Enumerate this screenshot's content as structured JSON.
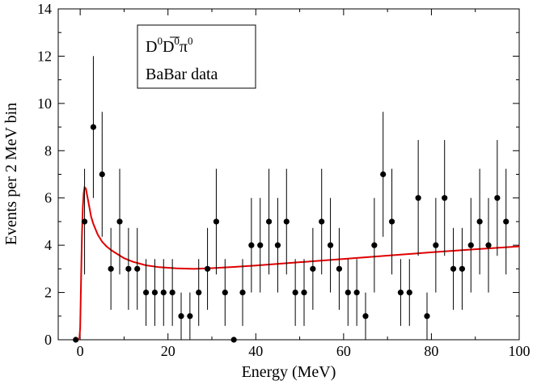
{
  "chart_data": {
    "type": "scatter",
    "title": "",
    "xlabel": "Energy (MeV)",
    "ylabel": "Events per 2 MeV bin",
    "xlim": [
      -5,
      100
    ],
    "ylim": [
      0,
      14
    ],
    "x_ticks": [
      0,
      20,
      40,
      60,
      80,
      100
    ],
    "y_ticks": [
      0,
      2,
      4,
      6,
      8,
      10,
      12,
      14
    ],
    "x_tick_labels": [
      "0",
      "20",
      "40",
      "60",
      "80",
      "100"
    ],
    "y_tick_labels": [
      "0",
      "2",
      "4",
      "6",
      "8",
      "10",
      "12",
      "14"
    ],
    "legend": {
      "base_D1": "D",
      "sup_0a": "0",
      "base_D2": "D",
      "sup_0b": "0",
      "base_pi": "π",
      "sup_0c": "0",
      "line2": "BaBar data",
      "placement": "top-left"
    },
    "data_color": "#000000",
    "fit_color": "#e00000",
    "series": [
      {
        "name": "BaBar data",
        "style": "points-with-errorbars",
        "x": [
          -1,
          1,
          3,
          5,
          7,
          9,
          11,
          13,
          15,
          17,
          19,
          21,
          23,
          25,
          27,
          29,
          31,
          33,
          35,
          37,
          39,
          41,
          43,
          45,
          47,
          49,
          51,
          53,
          55,
          57,
          59,
          61,
          63,
          65,
          67,
          69,
          71,
          73,
          75,
          77,
          79,
          81,
          83,
          85,
          87,
          89,
          91,
          93,
          95,
          97
        ],
        "y": [
          0,
          5,
          9,
          7,
          3,
          5,
          3,
          3,
          2,
          2,
          2,
          2,
          1,
          1,
          2,
          3,
          5,
          2,
          0,
          2,
          4,
          4,
          5,
          4,
          5,
          2,
          2,
          3,
          5,
          4,
          3,
          2,
          2,
          1,
          4,
          7,
          5,
          2,
          2,
          6,
          1,
          4,
          6,
          3,
          3,
          4,
          5,
          4,
          6,
          5
        ]
      },
      {
        "name": "Fit",
        "style": "line",
        "x": [
          -0.2,
          0,
          0.2,
          0.4,
          0.6,
          0.8,
          1,
          1.3,
          1.6,
          2,
          2.5,
          3,
          4,
          5,
          6,
          7,
          8,
          10,
          12,
          15,
          18,
          22,
          26,
          30,
          35,
          40,
          50,
          60,
          70,
          80,
          90,
          100
        ],
        "y": [
          0,
          0.5,
          2.5,
          4.4,
          5.6,
          6.2,
          6.45,
          6.4,
          6.1,
          5.7,
          5.2,
          4.9,
          4.45,
          4.15,
          3.95,
          3.8,
          3.68,
          3.45,
          3.3,
          3.15,
          3.07,
          3.02,
          3.0,
          3.03,
          3.08,
          3.14,
          3.28,
          3.42,
          3.56,
          3.7,
          3.83,
          3.95
        ]
      }
    ]
  }
}
